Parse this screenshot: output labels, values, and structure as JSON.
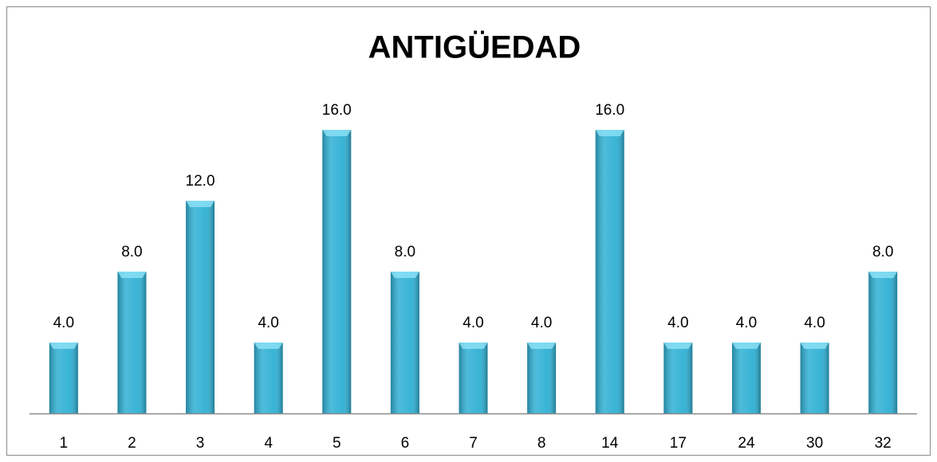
{
  "chart_data": {
    "type": "bar",
    "title": "ANTIGÜEDAD",
    "categories": [
      "1",
      "2",
      "3",
      "4",
      "5",
      "6",
      "7",
      "8",
      "14",
      "17",
      "24",
      "30",
      "32"
    ],
    "values": [
      4,
      8,
      12,
      4,
      16,
      8,
      4,
      4,
      16,
      4,
      4,
      4,
      8
    ],
    "value_labels": [
      "4.0",
      "8.0",
      "12.0",
      "4.0",
      "16.0",
      "8.0",
      "4.0",
      "4.0",
      "16.0",
      "4.0",
      "4.0",
      "4.0",
      "8.0"
    ],
    "color": "#2fb0d4"
  }
}
